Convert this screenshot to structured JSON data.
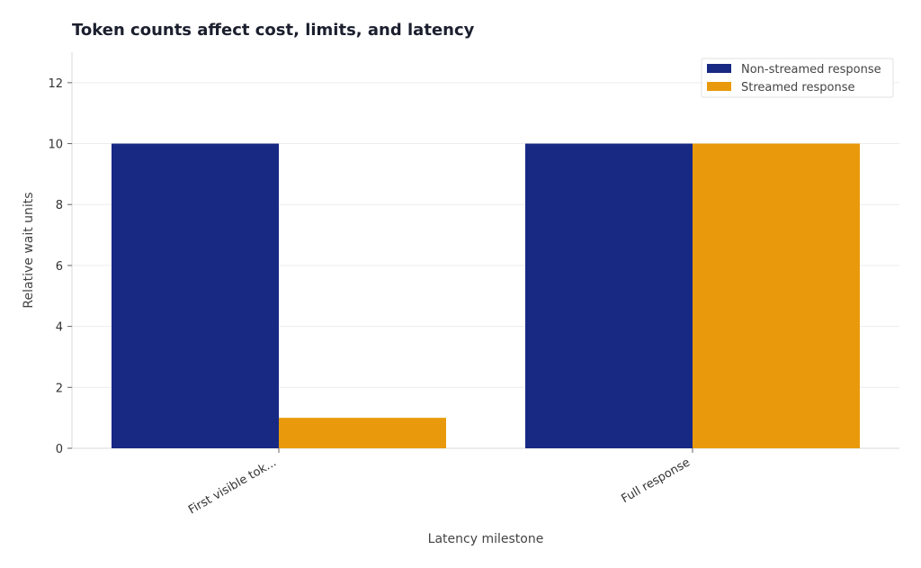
{
  "chart_data": {
    "type": "bar",
    "title": "Token counts affect cost, limits, and latency",
    "xlabel": "Latency milestone",
    "ylabel": "Relative wait units",
    "categories": [
      "First visible tok...",
      "Full response"
    ],
    "series": [
      {
        "name": "Non-streamed response",
        "values": [
          10,
          10
        ],
        "color": "#172983"
      },
      {
        "name": "Streamed response",
        "values": [
          1,
          10
        ],
        "color": "#E99A0C"
      }
    ],
    "ylim": [
      0,
      13
    ],
    "yticks": [
      0,
      2,
      4,
      6,
      8,
      10,
      12
    ],
    "grid": true,
    "legend_position": "top-right"
  }
}
